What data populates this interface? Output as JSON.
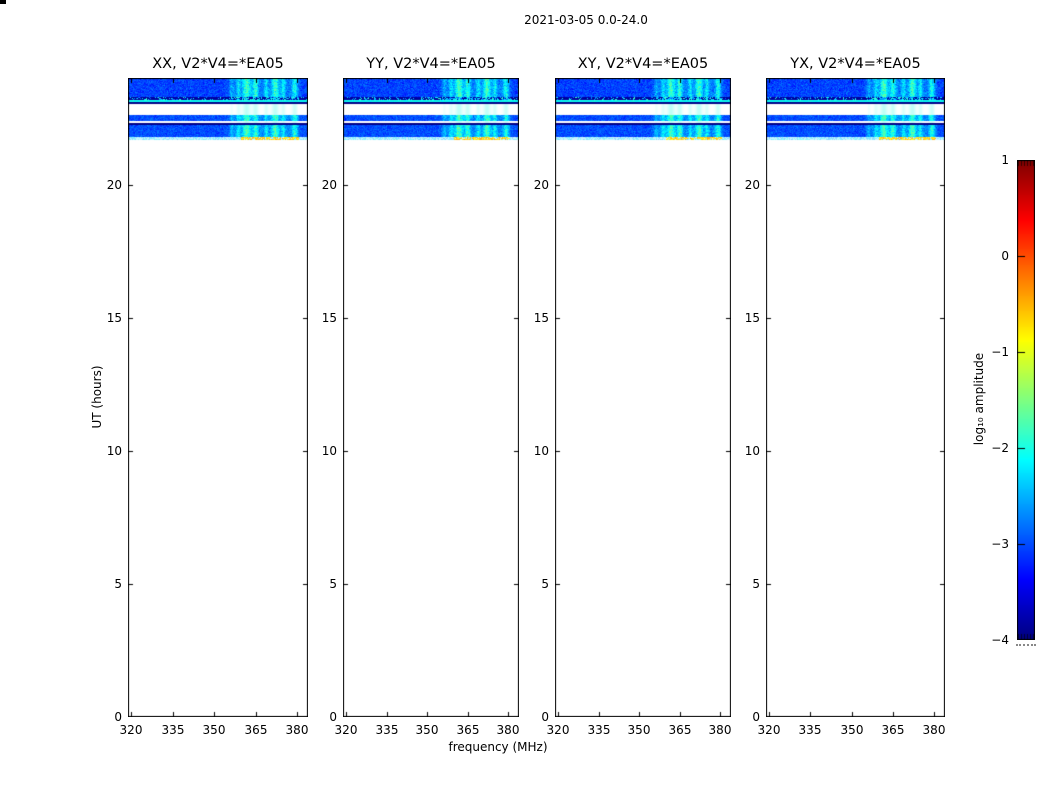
{
  "figure": {
    "title": "2021-03-05 0.0-24.0"
  },
  "panels": [
    {
      "title": "XX, V2*V4=*EA05"
    },
    {
      "title": "YY, V2*V4=*EA05"
    },
    {
      "title": "XY, V2*V4=*EA05"
    },
    {
      "title": "YX, V2*V4=*EA05"
    }
  ],
  "axes": {
    "xlabel": "frequency (MHz)",
    "ylabel": "UT (hours)",
    "x_ticks": [
      320,
      335,
      350,
      365,
      380
    ],
    "x_tick_labels": [
      "320",
      "335",
      "350",
      "365",
      "380"
    ],
    "y_ticks": [
      0,
      5,
      10,
      15,
      20
    ],
    "y_tick_labels": [
      "0",
      "5",
      "10",
      "15",
      "20"
    ],
    "x_range": [
      318.8,
      384.0
    ],
    "y_range": [
      0,
      24
    ]
  },
  "colorbar": {
    "label": "log₁₀ amplitude",
    "ticks": [
      1,
      0,
      -1,
      -2,
      -3,
      -4
    ],
    "tick_labels": [
      "1",
      "0",
      "−1",
      "−2",
      "−3",
      "−4"
    ],
    "range": [
      -4,
      1
    ],
    "colormap": "jet"
  },
  "chart_data": {
    "type": "heatmap",
    "title": "2021-03-05 0.0-24.0",
    "xlabel": "frequency (MHz)",
    "ylabel": "UT (hours)",
    "panels": [
      "XX, V2*V4=*EA05",
      "YY, V2*V4=*EA05",
      "XY, V2*V4=*EA05",
      "YX, V2*V4=*EA05"
    ],
    "x_range_mhz": [
      318.8,
      384.0
    ],
    "y_range_hours": [
      0,
      24
    ],
    "value_scale": "log10 amplitude",
    "value_range": [
      -4,
      1
    ],
    "colormap": "jet",
    "data_ut_extent": [
      21.69,
      24.0
    ],
    "bands": [
      {
        "ut": [
          23.29,
          24.0
        ],
        "kind": "noise",
        "base": -3.05,
        "sigma": 0.33
      },
      {
        "ut": [
          23.19,
          23.29
        ],
        "kind": "dark",
        "base": -3.85,
        "sigma": 0.1,
        "speckle": 0.22
      },
      {
        "ut": [
          23.11,
          23.19
        ],
        "kind": "noise",
        "base": -2.05,
        "sigma": 0.12,
        "rfi": 0
      },
      {
        "ut": [
          23.03,
          23.11
        ],
        "kind": "line",
        "base": -3.95
      },
      {
        "ut": [
          22.61,
          23.03
        ],
        "kind": "gap"
      },
      {
        "ut": [
          22.38,
          22.61
        ],
        "kind": "noise",
        "base": -3.0,
        "sigma": 0.3
      },
      {
        "ut": [
          22.31,
          22.38
        ],
        "kind": "gap"
      },
      {
        "ut": [
          22.23,
          22.31
        ],
        "kind": "line",
        "base": -3.95
      },
      {
        "ut": [
          21.8,
          22.23
        ],
        "kind": "noise",
        "base": -3.0,
        "sigma": 0.3
      },
      {
        "ut": [
          21.69,
          21.79
        ],
        "kind": "sparse",
        "base": -2.5,
        "orange_frac": [
          0.63,
          0.95
        ],
        "orange_value": -0.65
      }
    ],
    "rfi": {
      "frac_range": [
        0.54,
        0.97
      ],
      "broad_boost": 0.3,
      "columns": [
        {
          "c": 0.575,
          "a": 0.35,
          "w": 0.01
        },
        {
          "c": 0.615,
          "a": 0.5,
          "w": 0.012
        },
        {
          "c": 0.66,
          "a": 1.0,
          "w": 0.022
        },
        {
          "c": 0.71,
          "a": 0.85,
          "w": 0.016
        },
        {
          "c": 0.77,
          "a": 0.55,
          "w": 0.012
        },
        {
          "c": 0.82,
          "a": 0.95,
          "w": 0.02
        },
        {
          "c": 0.865,
          "a": 0.6,
          "w": 0.012
        },
        {
          "c": 0.93,
          "a": 0.8,
          "w": 0.016
        }
      ]
    }
  }
}
